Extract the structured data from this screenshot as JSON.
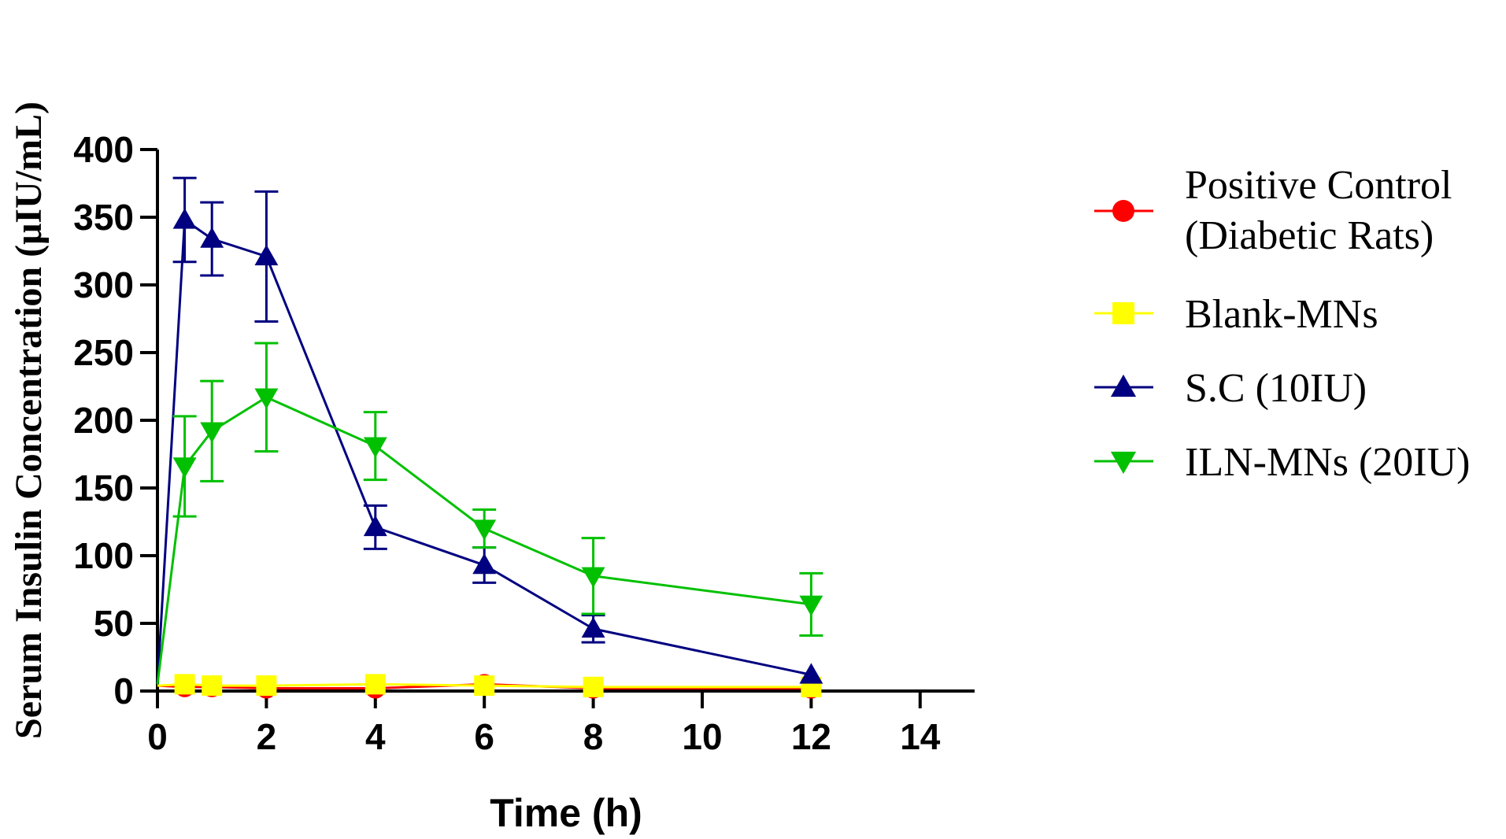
{
  "chart_data": {
    "type": "line",
    "title": "",
    "xlabel": "Time (h)",
    "ylabel": "Serum Insulin Concentration (μIU/mL)",
    "xlim": [
      0,
      15
    ],
    "ylim": [
      0,
      400
    ],
    "xticks": [
      0,
      2,
      4,
      6,
      8,
      10,
      12,
      14
    ],
    "yticks": [
      0,
      50,
      100,
      150,
      200,
      250,
      300,
      350,
      400
    ],
    "x_tick_labels": [
      "0",
      "2",
      "4",
      "6",
      "8",
      "10",
      "12",
      "14"
    ],
    "y_tick_labels": [
      "0",
      "50",
      "100",
      "150",
      "200",
      "250",
      "300",
      "350",
      "400"
    ],
    "grid": false,
    "legend_position": "right",
    "series": [
      {
        "name": "Positive Control (Diabetic Rats)",
        "legend_lines": [
          "Positive Control",
          "(Diabetic Rats)"
        ],
        "color": "#ff0000",
        "marker": "circle",
        "x": [
          0,
          0.5,
          1,
          2,
          4,
          6,
          8,
          12
        ],
        "values": [
          4,
          3,
          3,
          2,
          2,
          5,
          2,
          2
        ],
        "error": [
          0,
          0,
          0,
          0,
          0,
          0,
          0,
          0
        ]
      },
      {
        "name": "Blank-MNs",
        "legend_lines": [
          "Blank-MNs"
        ],
        "color": "#ffff00",
        "marker": "square",
        "x": [
          0,
          0.5,
          1,
          2,
          4,
          6,
          8,
          12
        ],
        "values": [
          4,
          5,
          4,
          4,
          5,
          4,
          3,
          3
        ],
        "error": [
          0,
          0,
          0,
          0,
          0,
          0,
          0,
          0
        ]
      },
      {
        "name": "S.C (10IU)",
        "legend_lines": [
          "S.C (10IU)"
        ],
        "color": "#000080",
        "marker": "triangle-up",
        "x": [
          0,
          0.5,
          1,
          2,
          4,
          6,
          8,
          12
        ],
        "values": [
          5,
          348,
          334,
          321,
          121,
          93,
          46,
          12
        ],
        "error": [
          0,
          31,
          27,
          48,
          16,
          13,
          10,
          0
        ]
      },
      {
        "name": "ILN-MNs (20IU)",
        "legend_lines": [
          "ILN-MNs (20IU)"
        ],
        "color": "#00c000",
        "marker": "triangle-down",
        "x": [
          0,
          0.5,
          1,
          2,
          4,
          6,
          8,
          12
        ],
        "values": [
          5,
          166,
          192,
          217,
          181,
          120,
          85,
          64
        ],
        "error": [
          0,
          37,
          37,
          40,
          25,
          14,
          28,
          23
        ]
      }
    ]
  }
}
